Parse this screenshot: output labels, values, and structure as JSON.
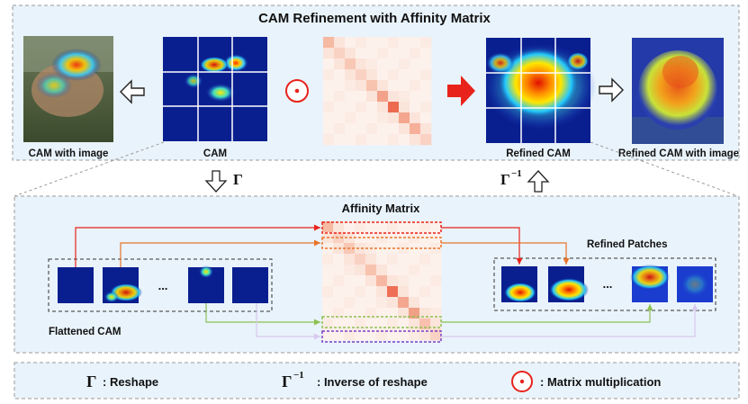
{
  "top_panel": {
    "title": "CAM Refinement with Affinity Matrix",
    "labels": {
      "cam_with_image": "CAM with image",
      "cam": "CAM",
      "refined_cam": "Refined CAM",
      "refined_cam_with_image": "Refined CAM with image"
    }
  },
  "between": {
    "gamma": "Γ",
    "gamma_inv_base": "Γ",
    "gamma_inv_sup": "−1"
  },
  "bottom_panel": {
    "affinity_title": "Affinity Matrix",
    "flattened_cam": "Flattened CAM",
    "refined_patches": "Refined Patches",
    "ellipsis": "..."
  },
  "legend": {
    "gamma_sym": "Γ",
    "gamma_desc": ": Reshape",
    "gamma_inv_sym": "Γ",
    "gamma_inv_sup": "−1",
    "gamma_inv_desc": ": Inverse of reshape",
    "mm_desc": ": Matrix multiplication"
  },
  "colors": {
    "panel_fill": "#e9f3fb",
    "dashed_border": "#9a9a9a",
    "red": "#e8231b",
    "orange": "#e8742a",
    "green": "#8cc152",
    "purple": "#7b3fc8",
    "lavender": "#d8c8ee",
    "heat_blue": "#0a1f8f"
  }
}
